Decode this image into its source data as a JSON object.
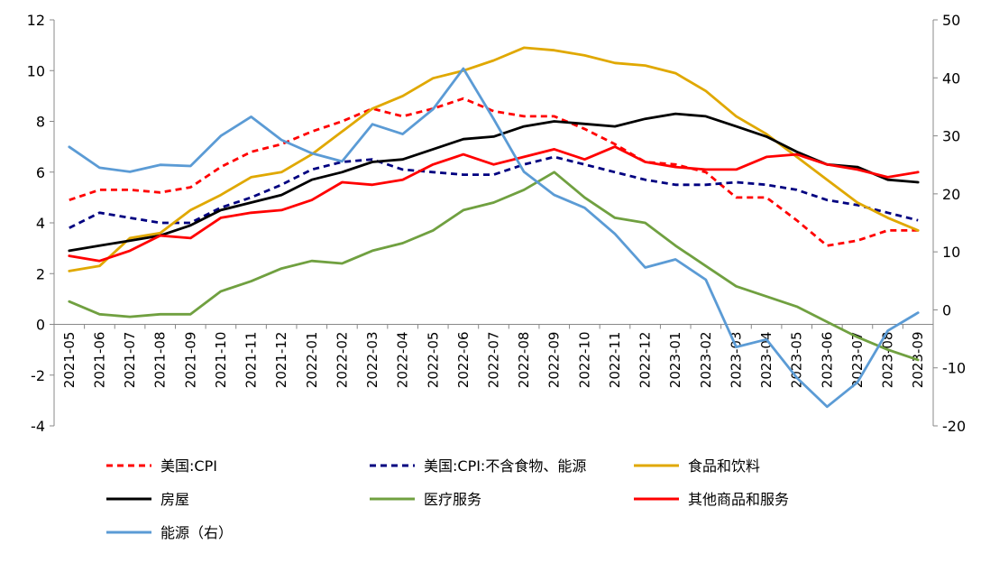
{
  "chart_data": {
    "type": "line",
    "x": [
      "2021-05",
      "2021-06",
      "2021-07",
      "2021-08",
      "2021-09",
      "2021-10",
      "2021-11",
      "2021-12",
      "2022-01",
      "2022-02",
      "2022-03",
      "2022-04",
      "2022-05",
      "2022-06",
      "2022-07",
      "2022-08",
      "2022-09",
      "2022-10",
      "2022-11",
      "2022-12",
      "2023-01",
      "2023-02",
      "2023-03",
      "2023-04",
      "2023-05",
      "2023-06",
      "2023-07",
      "2023-08",
      "2023-09"
    ],
    "y_left": {
      "min": -4,
      "max": 12,
      "step": 2,
      "ticks": [
        "12",
        "10",
        "8",
        "6",
        "4",
        "2",
        "0",
        "-2",
        "-4"
      ]
    },
    "y_right": {
      "min": -20,
      "max": 50,
      "step": 10,
      "ticks": [
        "50",
        "40",
        "30",
        "20",
        "10",
        "0",
        "-10",
        "-20"
      ]
    },
    "grid": false,
    "legend_position": "bottom",
    "series": [
      {
        "name": "美国:CPI",
        "color": "#ff0000",
        "dash": true,
        "axis": "left",
        "values": [
          4.9,
          5.3,
          5.3,
          5.2,
          5.4,
          6.2,
          6.8,
          7.1,
          7.6,
          8.0,
          8.5,
          8.2,
          8.5,
          8.9,
          8.4,
          8.2,
          8.2,
          7.7,
          7.1,
          6.4,
          6.3,
          6.0,
          5.0,
          5.0,
          4.1,
          3.1,
          3.3,
          3.7,
          3.7
        ]
      },
      {
        "name": "美国:CPI:不含食物、能源",
        "color": "#000080",
        "dash": true,
        "axis": "left",
        "values": [
          3.8,
          4.4,
          4.2,
          4.0,
          4.0,
          4.6,
          5.0,
          5.5,
          6.1,
          6.4,
          6.5,
          6.1,
          6.0,
          5.9,
          5.9,
          6.3,
          6.6,
          6.3,
          6.0,
          5.7,
          5.5,
          5.5,
          5.6,
          5.5,
          5.3,
          4.9,
          4.7,
          4.4,
          4.1
        ]
      },
      {
        "name": "食品和饮料",
        "color": "#e0a800",
        "dash": false,
        "axis": "left",
        "values": [
          2.1,
          2.3,
          3.4,
          3.6,
          4.5,
          5.1,
          5.8,
          6.0,
          6.7,
          7.6,
          8.5,
          9.0,
          9.7,
          10.0,
          10.4,
          10.9,
          10.8,
          10.6,
          10.3,
          10.2,
          9.9,
          9.2,
          8.2,
          7.5,
          6.6,
          5.7,
          4.8,
          4.2,
          3.7
        ]
      },
      {
        "name": "房屋",
        "color": "#000000",
        "dash": false,
        "axis": "left",
        "values": [
          2.9,
          3.1,
          3.3,
          3.5,
          3.9,
          4.5,
          4.8,
          5.1,
          5.7,
          6.0,
          6.4,
          6.5,
          6.9,
          7.3,
          7.4,
          7.8,
          8.0,
          7.9,
          7.8,
          8.1,
          8.3,
          8.2,
          7.8,
          7.4,
          6.8,
          6.3,
          6.2,
          5.7,
          5.6
        ]
      },
      {
        "name": "医疗服务",
        "color": "#70a040",
        "dash": false,
        "axis": "left",
        "values": [
          0.9,
          0.4,
          0.3,
          0.4,
          0.4,
          1.3,
          1.7,
          2.2,
          2.5,
          2.4,
          2.9,
          3.2,
          3.7,
          4.5,
          4.8,
          5.3,
          6.0,
          5.0,
          4.2,
          4.0,
          3.1,
          2.3,
          1.5,
          1.1,
          0.7,
          0.1,
          -0.5,
          -1.0,
          -1.4
        ]
      },
      {
        "name": "其他商品和服务",
        "color": "#ff0000",
        "dash": false,
        "axis": "left",
        "values": [
          2.7,
          2.5,
          2.9,
          3.5,
          3.4,
          4.2,
          4.4,
          4.5,
          4.9,
          5.6,
          5.5,
          5.7,
          6.3,
          6.7,
          6.3,
          6.6,
          6.9,
          6.5,
          7.0,
          6.4,
          6.2,
          6.1,
          6.1,
          6.6,
          6.7,
          6.3,
          6.1,
          5.8,
          6.0
        ]
      },
      {
        "name": "能源（右）",
        "color": "#5b9bd5",
        "dash": false,
        "axis": "right",
        "values": [
          28.1,
          24.5,
          23.8,
          25.0,
          24.8,
          30.0,
          33.3,
          29.3,
          27.0,
          25.6,
          32.0,
          30.3,
          34.6,
          41.6,
          32.9,
          23.8,
          19.8,
          17.6,
          13.1,
          7.3,
          8.7,
          5.2,
          -6.4,
          -5.1,
          -11.7,
          -16.7,
          -12.5,
          -3.6,
          -0.5
        ]
      }
    ]
  }
}
